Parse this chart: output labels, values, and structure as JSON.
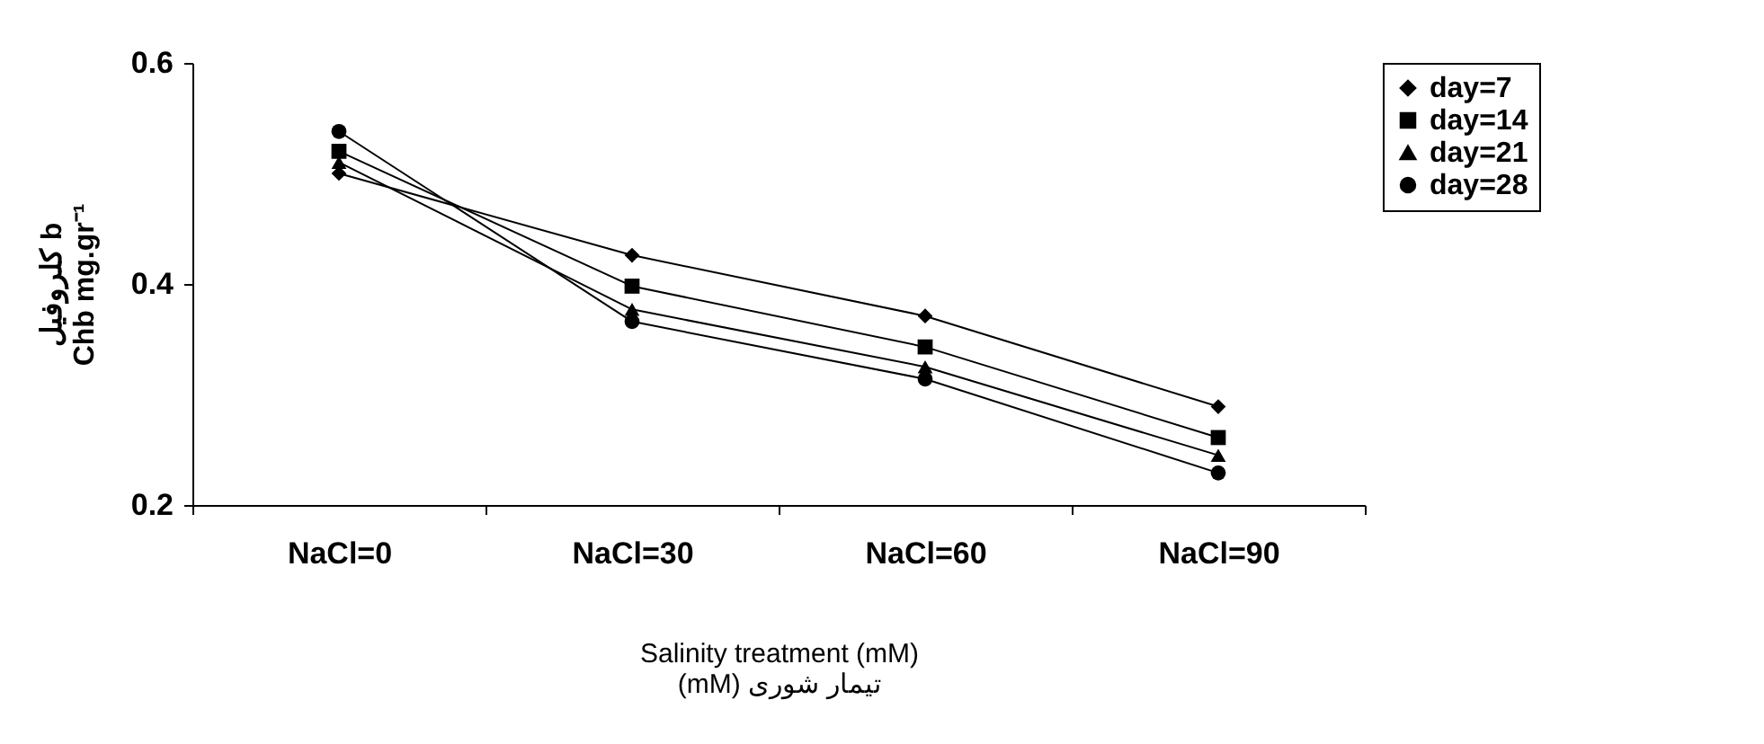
{
  "chart_data": {
    "type": "line",
    "xlabel": "Salinity treatment (mM)\n(mM) تیمار شوری",
    "ylabel": "کلروفیل b\nChb mg.gr⁻¹",
    "categories": [
      "NaCl=0",
      "NaCl=30",
      "NaCl=60",
      "NaCl=90"
    ],
    "ylim": [
      0.2,
      0.6
    ],
    "yticks": [
      0.2,
      0.4,
      0.6
    ],
    "grid": false,
    "legend": "right",
    "line_style": "solid",
    "series": [
      {
        "name": "day=7",
        "color": "#000000",
        "marker": "diamond",
        "values": [
          0.5,
          0.426,
          0.371,
          0.289
        ]
      },
      {
        "name": "day=14",
        "color": "#000000",
        "marker": "square",
        "values": [
          0.52,
          0.398,
          0.343,
          0.261
        ]
      },
      {
        "name": "day=21",
        "color": "#000000",
        "marker": "triangle",
        "values": [
          0.51,
          0.377,
          0.325,
          0.245
        ]
      },
      {
        "name": "day=28",
        "color": "#000000",
        "marker": "circle",
        "values": [
          0.538,
          0.366,
          0.314,
          0.229
        ]
      }
    ]
  }
}
